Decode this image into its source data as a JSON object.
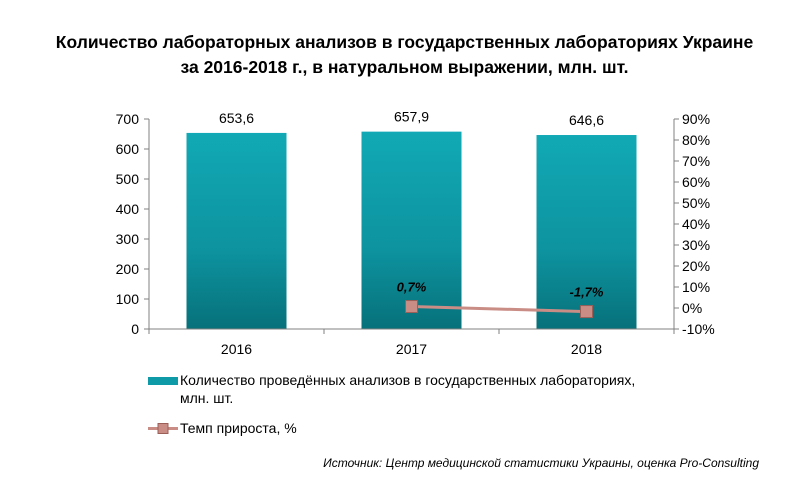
{
  "title": {
    "line1": "Количество лабораторных анализов в государственных лабораториях Украине",
    "line2": "за 2016-2018 г., в натуральном выражении, млн. шт."
  },
  "chart_data": {
    "type": "bar",
    "title": "Количество лабораторных анализов в государственных лабораториях Украине за 2016-2018 г., в натуральном выражении, млн. шт.",
    "categories": [
      "2016",
      "2017",
      "2018"
    ],
    "series": [
      {
        "name": "Количество проведённых анализов в государственных лабораториях, млн. шт.",
        "type": "bar",
        "axis": "left",
        "values": [
          653.6,
          657.9,
          646.6
        ],
        "labels": [
          "653,6",
          "657,9",
          "646,6"
        ],
        "color": "#0E9AA7"
      },
      {
        "name": "Темп прироста, %",
        "type": "line",
        "axis": "right",
        "x": [
          "2017",
          "2018"
        ],
        "values": [
          0.7,
          -1.7
        ],
        "labels": [
          "0,7%",
          "-1,7%"
        ],
        "color": "#C98D86"
      }
    ],
    "y_left": {
      "min": 0,
      "max": 700,
      "ticks": [
        "0",
        "100",
        "200",
        "300",
        "400",
        "500",
        "600",
        "700"
      ]
    },
    "y_right": {
      "min": -10,
      "max": 90,
      "ticks": [
        "-10%",
        "0%",
        "10%",
        "20%",
        "30%",
        "40%",
        "50%",
        "60%",
        "70%",
        "80%",
        "90%"
      ]
    },
    "grid": false,
    "legend_position": "bottom"
  },
  "legend": {
    "bar_label_line1": "Количество проведённых анализов в государственных лабораториях,",
    "bar_label_line2": "млн. шт.",
    "line_label": "Темп прироста, %"
  },
  "source": "Источник: Центр медицинской статистики Украины, оценка Pro-Consulting"
}
